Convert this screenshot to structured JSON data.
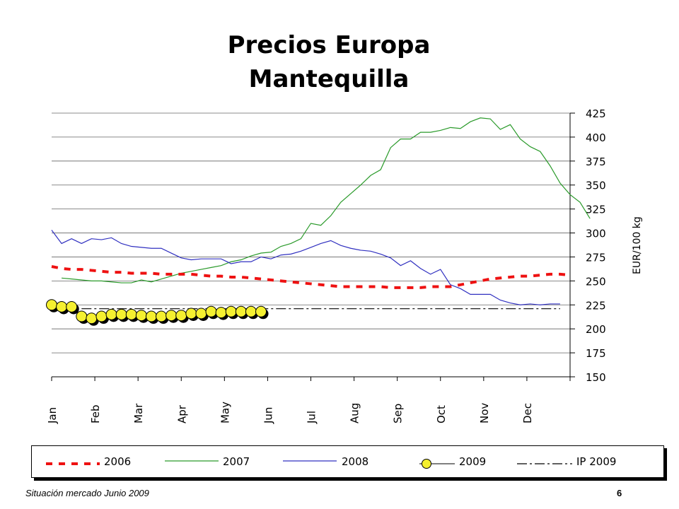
{
  "slide": {
    "title_line1": "Precios Europa",
    "title_line2": "Mantequilla",
    "footer_left": "Situación mercado Junio 2009",
    "page_number": "6"
  },
  "chart_data": {
    "type": "line",
    "title": "Precios Europa Mantequilla",
    "ylabel": "EUR/100 kg",
    "ylim": [
      150,
      425
    ],
    "yticks": [
      150,
      175,
      200,
      225,
      250,
      275,
      300,
      325,
      350,
      375,
      400,
      425
    ],
    "xlim": [
      1,
      53
    ],
    "months": [
      "Jan",
      "Feb",
      "Mar",
      "Apr",
      "May",
      "Jun",
      "Jul",
      "Aug",
      "Sep",
      "Oct",
      "Nov",
      "Dec"
    ],
    "grid": true,
    "legend_position": "bottom",
    "colors": {
      "2006": "#ee1111",
      "2007": "#2a9a2a",
      "2008": "#3030c0",
      "2009_fill": "#f5f030",
      "ip2009": "#000000"
    },
    "series": [
      {
        "name": "2006",
        "style": "dashed-red-thick",
        "x_start": 1,
        "values": [
          265,
          263,
          262,
          262,
          261,
          260,
          259,
          259,
          258,
          258,
          258,
          257,
          257,
          257,
          257,
          256,
          255,
          255,
          254,
          254,
          253,
          252,
          251,
          250,
          249,
          248,
          247,
          246,
          245,
          244,
          244,
          244,
          244,
          244,
          243,
          243,
          243,
          243,
          244,
          244,
          244,
          246,
          248,
          250,
          252,
          253,
          254,
          255,
          255,
          256,
          257,
          257,
          256
        ]
      },
      {
        "name": "2007",
        "style": "solid-green",
        "x_start": 2,
        "values": [
          253,
          252,
          251,
          250,
          250,
          249,
          248,
          248,
          251,
          249,
          252,
          255,
          258,
          260,
          262,
          264,
          266,
          270,
          272,
          276,
          279,
          280,
          286,
          289,
          294,
          310,
          308,
          318,
          332,
          341,
          350,
          360,
          366,
          389,
          398,
          398,
          405,
          405,
          407,
          410,
          409,
          416,
          420,
          419,
          408,
          413,
          398,
          390,
          385,
          370,
          352,
          340,
          332,
          315
        ]
      },
      {
        "name": "2008",
        "style": "solid-blue",
        "x_start": 1,
        "values": [
          303,
          289,
          294,
          289,
          294,
          293,
          295,
          289,
          286,
          285,
          284,
          284,
          279,
          274,
          272,
          273,
          273,
          273,
          268,
          270,
          270,
          275,
          273,
          277,
          278,
          281,
          285,
          289,
          292,
          287,
          284,
          282,
          281,
          278,
          274,
          266,
          271,
          263,
          257,
          262,
          246,
          242,
          236,
          236,
          236,
          230,
          227,
          225,
          226,
          225,
          226,
          226
        ]
      },
      {
        "name": "2009",
        "style": "yellow-markers",
        "x_start": 1,
        "values": [
          225,
          223,
          223,
          213,
          211,
          213,
          215,
          215,
          215,
          214,
          213,
          213,
          214,
          214,
          216,
          216,
          218,
          217,
          218,
          218,
          218,
          218
        ]
      },
      {
        "name": "IP 2009",
        "style": "dash-dot-black",
        "x_start": 4,
        "values": [
          221,
          221
        ]
      }
    ]
  }
}
